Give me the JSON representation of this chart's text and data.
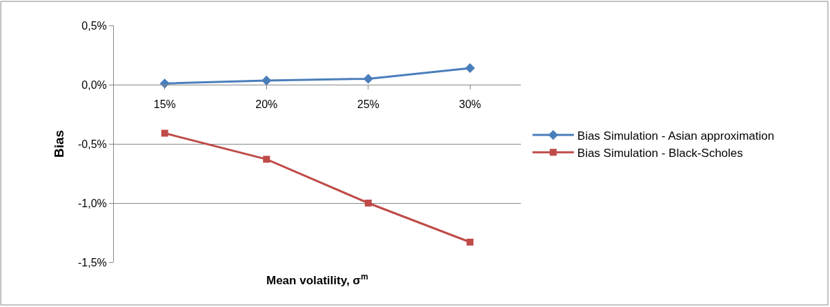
{
  "chart_data": {
    "type": "line",
    "xlabel": "Mean volatility, σ$^{m}$",
    "ylabel": "Bias",
    "categories": [
      "15%",
      "20%",
      "25%",
      "30%"
    ],
    "series": [
      {
        "name": "Bias Simulation - Asian approximation",
        "color": "#4a7ebb",
        "marker": "diamond",
        "values": [
          0.01,
          0.035,
          0.05,
          0.14
        ]
      },
      {
        "name": "Bias Simulation - Black-Scholes",
        "color": "#be4b48",
        "marker": "square",
        "values": [
          -0.41,
          -0.63,
          -1.0,
          -1.33
        ]
      }
    ],
    "ylim": [
      -1.5,
      0.5
    ],
    "yticks": [
      {
        "value": -1.5,
        "label": "-1,5%"
      },
      {
        "value": -1.0,
        "label": "-1,0%"
      },
      {
        "value": -0.5,
        "label": "-0,5%"
      },
      {
        "value": 0,
        "label": "0,0%"
      },
      {
        "value": 0.5,
        "label": "0,5%"
      }
    ],
    "grid": "y",
    "legend": "right"
  }
}
